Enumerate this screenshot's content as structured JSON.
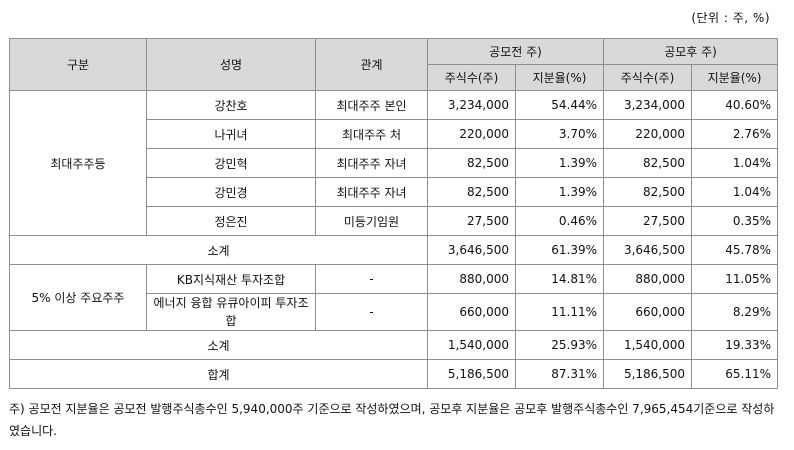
{
  "unit_note": "(단위 : 주, %)",
  "headers": {
    "category": "구분",
    "name": "성명",
    "relation": "관계",
    "pre_ipo": "공모전 주)",
    "post_ipo": "공모후 주)",
    "shares": "주식수(주)",
    "ratio": "지분율(%)"
  },
  "groups": {
    "largest": "최대주주등",
    "major": "5% 이상 주요주주"
  },
  "rows": [
    {
      "name": "강찬호",
      "relation": "최대주주 본인",
      "pre_shares": "3,234,000",
      "pre_ratio": "54.44%",
      "post_shares": "3,234,000",
      "post_ratio": "40.60%"
    },
    {
      "name": "나귀녀",
      "relation": "최대주주 처",
      "pre_shares": "220,000",
      "pre_ratio": "3.70%",
      "post_shares": "220,000",
      "post_ratio": "2.76%"
    },
    {
      "name": "강민혁",
      "relation": "최대주주 자녀",
      "pre_shares": "82,500",
      "pre_ratio": "1.39%",
      "post_shares": "82,500",
      "post_ratio": "1.04%"
    },
    {
      "name": "강민경",
      "relation": "최대주주 자녀",
      "pre_shares": "82,500",
      "pre_ratio": "1.39%",
      "post_shares": "82,500",
      "post_ratio": "1.04%"
    },
    {
      "name": "정은진",
      "relation": "미등기임원",
      "pre_shares": "27,500",
      "pre_ratio": "0.46%",
      "post_shares": "27,500",
      "post_ratio": "0.35%"
    },
    {
      "name": "KB지식재산 투자조합",
      "relation": "-",
      "pre_shares": "880,000",
      "pre_ratio": "14.81%",
      "post_shares": "880,000",
      "post_ratio": "11.05%"
    },
    {
      "name": "에너지 융합 유큐아이피 투자조합",
      "relation": "-",
      "pre_shares": "660,000",
      "pre_ratio": "11.11%",
      "post_shares": "660,000",
      "post_ratio": "8.29%"
    }
  ],
  "subtotal1": {
    "label": "소계",
    "pre_shares": "3,646,500",
    "pre_ratio": "61.39%",
    "post_shares": "3,646,500",
    "post_ratio": "45.78%"
  },
  "subtotal2": {
    "label": "소계",
    "pre_shares": "1,540,000",
    "pre_ratio": "25.93%",
    "post_shares": "1,540,000",
    "post_ratio": "19.33%"
  },
  "total": {
    "label": "합계",
    "pre_shares": "5,186,500",
    "pre_ratio": "87.31%",
    "post_shares": "5,186,500",
    "post_ratio": "65.11%"
  },
  "footnote": "주) 공모전 지분율은 공모전 발행주식총수인 5,940,000주 기준으로 작성하였으며, 공모후 지분율은 공모후 발행주식총수인 7,965,454기준으로 작성하였습니다."
}
